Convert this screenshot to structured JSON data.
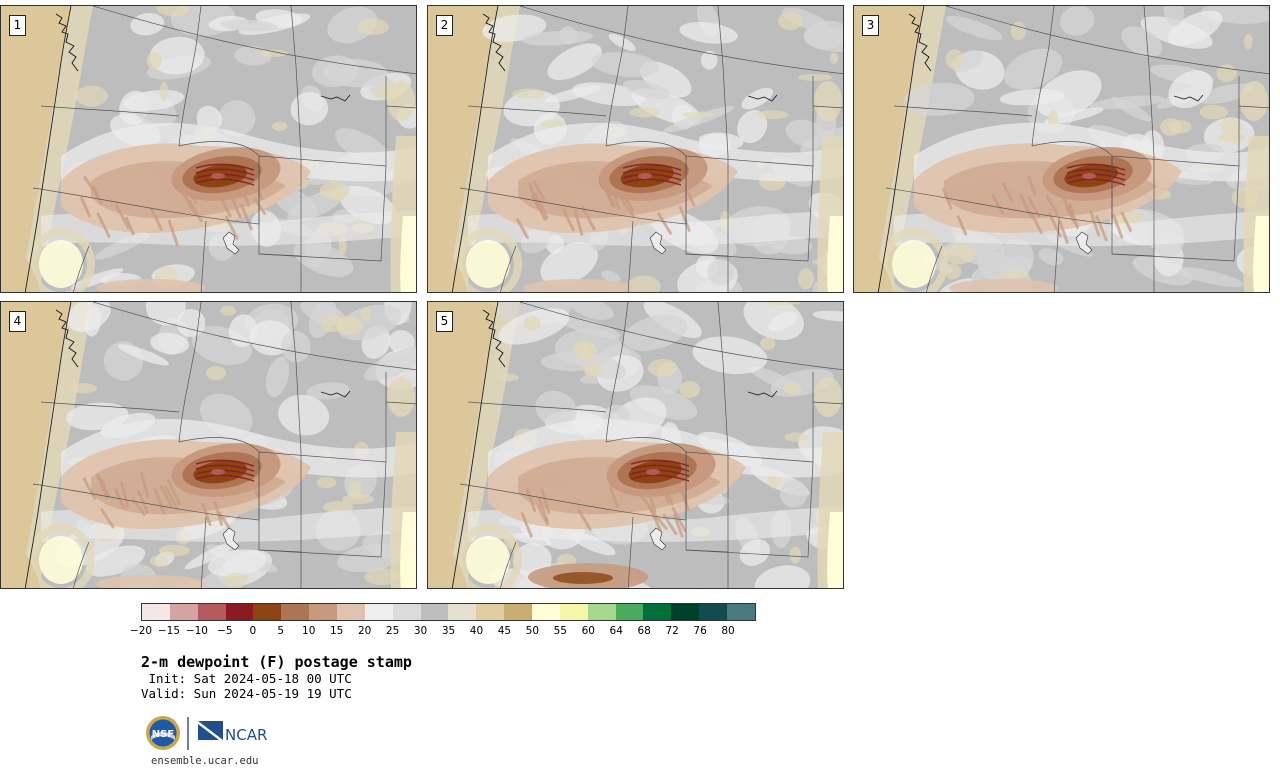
{
  "panels": [
    {
      "label": "1",
      "variant": 1
    },
    {
      "label": "2",
      "variant": 2
    },
    {
      "label": "3",
      "variant": 3
    },
    {
      "label": "4",
      "variant": 4
    },
    {
      "label": "5",
      "variant": 5
    }
  ],
  "colorbar": {
    "colors": [
      "#f3e8e6",
      "#d4a3a3",
      "#b35a5c",
      "#8b1a22",
      "#8b4513",
      "#ad7554",
      "#c79a80",
      "#dfc3ae",
      "#efefef",
      "#dcdcdc",
      "#bdbdbd",
      "#e4e1d3",
      "#e0cea2",
      "#c9ad70",
      "#fefdd8",
      "#f6f5a8",
      "#a6d98f",
      "#48aa5c",
      "#00703a",
      "#00402a",
      "#134c50",
      "#4b7b80"
    ],
    "tick_labels": [
      "−20",
      "−15",
      "−10",
      "−5",
      "0",
      "5",
      "10",
      "15",
      "20",
      "25",
      "30",
      "35",
      "40",
      "45",
      "50",
      "55",
      "60",
      "64",
      "68",
      "72",
      "76",
      "80"
    ]
  },
  "map_colors": {
    "ocean": "#dcc79a",
    "land_dark": "#bdbdbd",
    "land_mid": "#d6d6d6",
    "land_light": "#ececec",
    "tan_light": "#e2d8b8",
    "dry1": "#dfc3ae",
    "dry2": "#c79a80",
    "dry3": "#ad7554",
    "dry4": "#8b4513",
    "dry5": "#8b1a22",
    "dry6": "#b35a5c",
    "yellow": "#fefdd8",
    "border": "#555555"
  },
  "title": "2-m dewpoint (F) postage stamp",
  "init": " Init: Sat 2024-05-18 00 UTC",
  "valid": "Valid: Sun 2024-05-19 19 UTC",
  "logos": {
    "nsf": "NSF",
    "ncar": "NCAR"
  },
  "url": "ensemble.ucar.edu"
}
